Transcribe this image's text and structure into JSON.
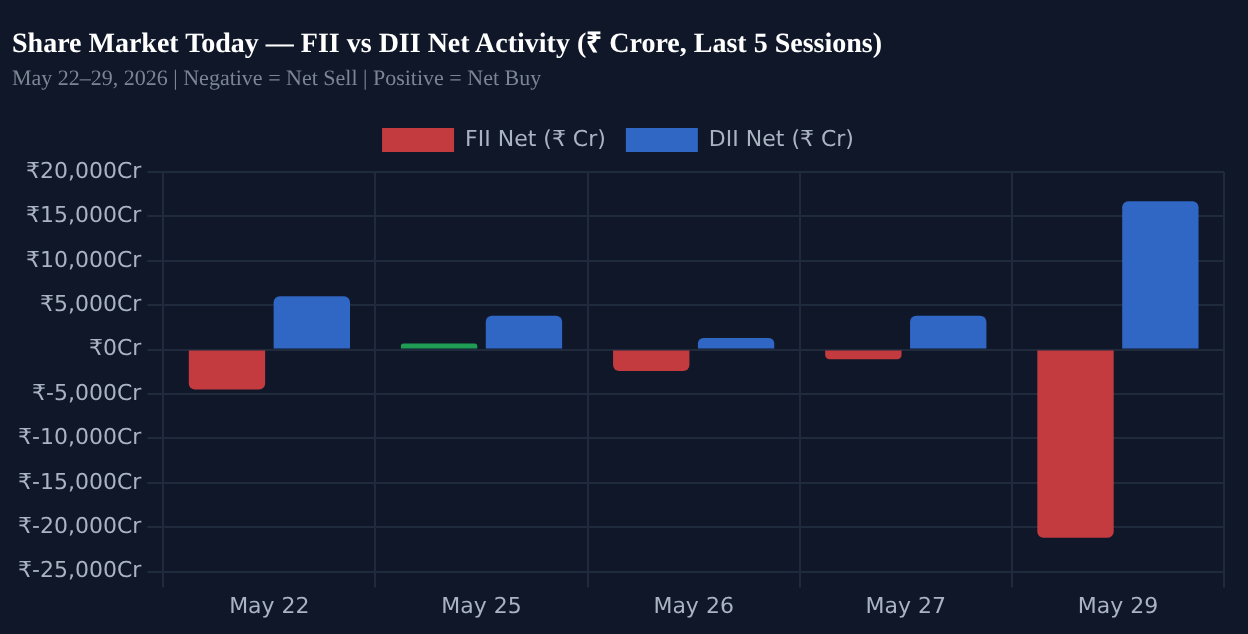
{
  "chart_data": {
    "type": "bar",
    "title": "Share Market Today — FII vs DII Net Activity (₹ Crore, Last 5 Sessions)",
    "subtitle": "May 22–29, 2026 | Negative = Net Sell | Positive = Net Buy",
    "categories": [
      "May 22",
      "May 25",
      "May 26",
      "May 27",
      "May 29"
    ],
    "series": [
      {
        "name": "FII Net (₹ Cr)",
        "color": "#c43b3f",
        "colors": [
          "#c43b3f",
          "#1f9d55",
          "#c43b3f",
          "#c43b3f",
          "#c43b3f"
        ],
        "values": [
          -4500,
          700,
          -2400,
          -1100,
          -21200
        ]
      },
      {
        "name": "DII Net (₹ Cr)",
        "color": "#3066c4",
        "values": [
          6000,
          3800,
          1300,
          3800,
          16700
        ]
      }
    ],
    "ylim": [
      -25000,
      20000
    ],
    "yticks": [
      {
        "value": -25000,
        "label": "₹-25,000Cr"
      },
      {
        "value": -20000,
        "label": "₹-20,000Cr"
      },
      {
        "value": -15000,
        "label": "₹-15,000Cr"
      },
      {
        "value": -10000,
        "label": "₹-10,000Cr"
      },
      {
        "value": -5000,
        "label": "₹-5,000Cr"
      },
      {
        "value": 0,
        "label": "₹0Cr"
      },
      {
        "value": 5000,
        "label": "₹5,000Cr"
      },
      {
        "value": 10000,
        "label": "₹10,000Cr"
      },
      {
        "value": 15000,
        "label": "₹15,000Cr"
      },
      {
        "value": 20000,
        "label": "₹20,000Cr"
      }
    ],
    "grid": true,
    "legend": "top"
  }
}
